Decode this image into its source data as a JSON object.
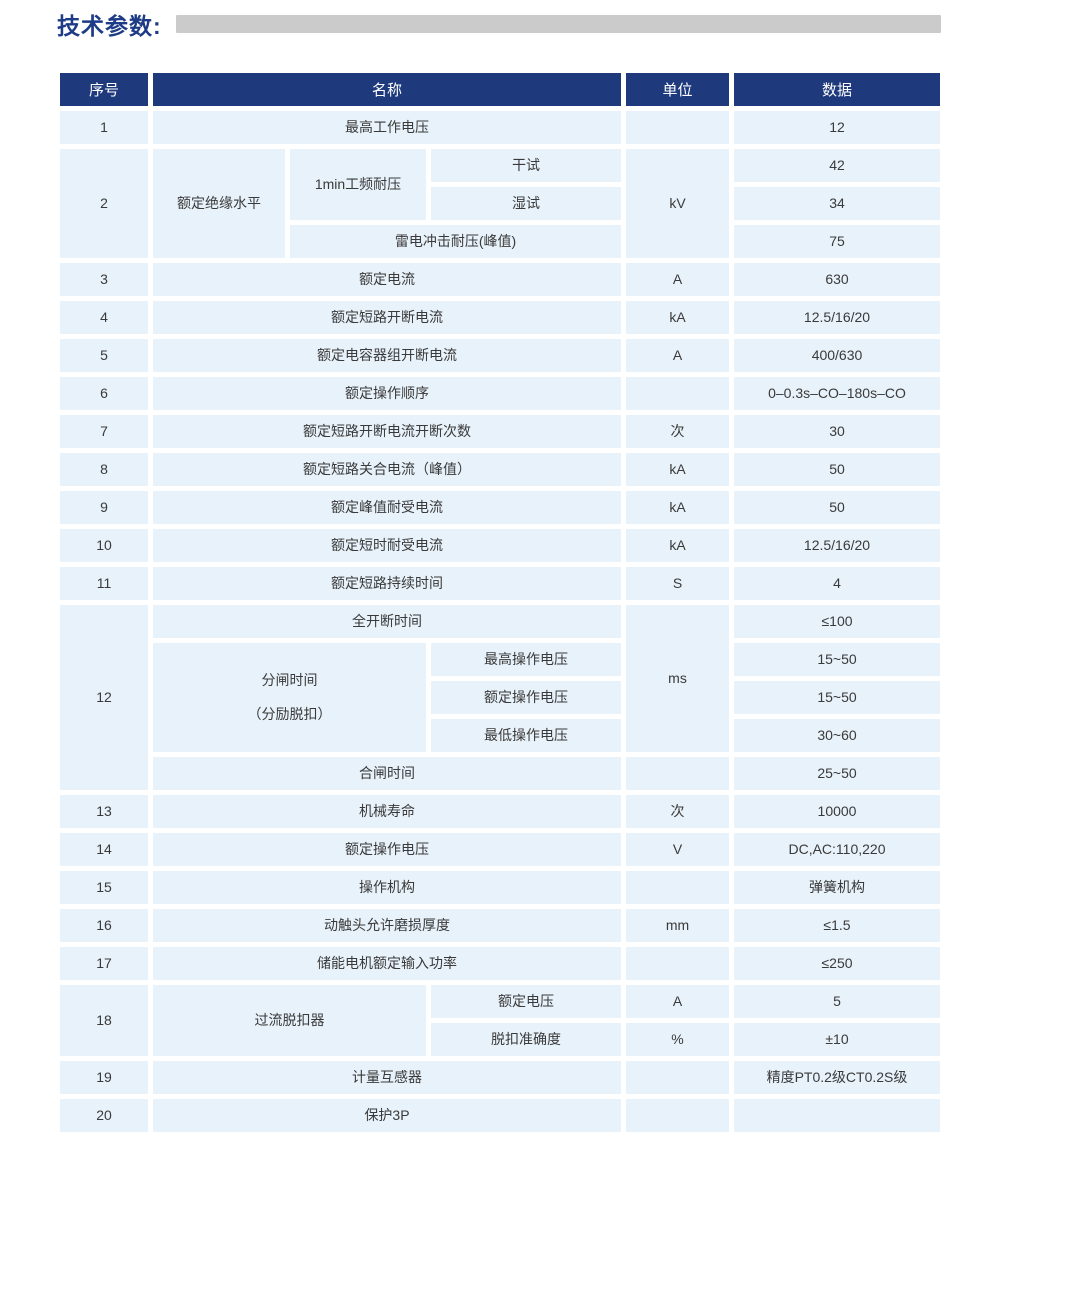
{
  "page_title": "技术参数:",
  "table": {
    "headers": {
      "no": "序号",
      "name": "名称",
      "unit": "单位",
      "data": "数据"
    },
    "rows": [
      {
        "no": "1",
        "name": "最高工作电压",
        "unit": "",
        "data": "12"
      },
      {
        "no": "2",
        "level": "额定绝缘水平",
        "freq": "1min工频耐压",
        "dry": "干试",
        "wet": "湿试",
        "lightning": "雷电冲击耐压(峰值)",
        "unit": "kV",
        "data_dry": "42",
        "data_wet": "34",
        "data_lightning": "75"
      },
      {
        "no": "3",
        "name": "额定电流",
        "unit": "A",
        "data": "630"
      },
      {
        "no": "4",
        "name": "额定短路开断电流",
        "unit": "kA",
        "data": "12.5/16/20"
      },
      {
        "no": "5",
        "name": "额定电容器组开断电流",
        "unit": "A",
        "data": "400/630"
      },
      {
        "no": "6",
        "name": "额定操作顺序",
        "unit": "",
        "data": "0–0.3s–CO–180s–CO"
      },
      {
        "no": "7",
        "name": "额定短路开断电流开断次数",
        "unit": "次",
        "data": "30"
      },
      {
        "no": "8",
        "name": "额定短路关合电流（峰值）",
        "unit": "kA",
        "data": "50"
      },
      {
        "no": "9",
        "name": "额定峰值耐受电流",
        "unit": "kA",
        "data": "50"
      },
      {
        "no": "10",
        "name": "额定短时耐受电流",
        "unit": "kA",
        "data": "12.5/16/20"
      },
      {
        "no": "11",
        "name": "额定短路持续时间",
        "unit": "S",
        "data": "4"
      },
      {
        "no": "12",
        "full_break": "全开断时间",
        "opening_line1": "分闸时间",
        "opening_line2": "（分励脱扣）",
        "vmax": "最高操作电压",
        "vrated": "额定操作电压",
        "vmin": "最低操作电压",
        "closing": "合闸时间",
        "unit": "ms",
        "unit_closing": "",
        "data_full": "≤100",
        "data_vmax": "15~50",
        "data_vrated": "15~50",
        "data_vmin": "30~60",
        "data_closing": "25~50"
      },
      {
        "no": "13",
        "name": "机械寿命",
        "unit": "次",
        "data": "10000"
      },
      {
        "no": "14",
        "name": "额定操作电压",
        "unit": "V",
        "data": "DC,AC:110,220"
      },
      {
        "no": "15",
        "name": "操作机构",
        "unit": "",
        "data": "弹簧机构"
      },
      {
        "no": "16",
        "name": "动触头允许磨损厚度",
        "unit": "mm",
        "data": "≤1.5"
      },
      {
        "no": "17",
        "name": "储能电机额定输入功率",
        "unit": "",
        "data": "≤250"
      },
      {
        "no": "18",
        "group": "过流脱扣器",
        "sub1": "额定电压",
        "sub2": "脱扣准确度",
        "unit1": "A",
        "unit2": "%",
        "data1": "5",
        "data2": "±10"
      },
      {
        "no": "19",
        "name": "计量互感器",
        "unit": "",
        "data": "精度PT0.2级CT0.2S级"
      },
      {
        "no": "20",
        "name": "保护3P",
        "unit": "",
        "data": ""
      }
    ],
    "accent_color": "#1e3a7d",
    "cell_color": "#e8f2fa",
    "title_color": "#1d3b86"
  }
}
